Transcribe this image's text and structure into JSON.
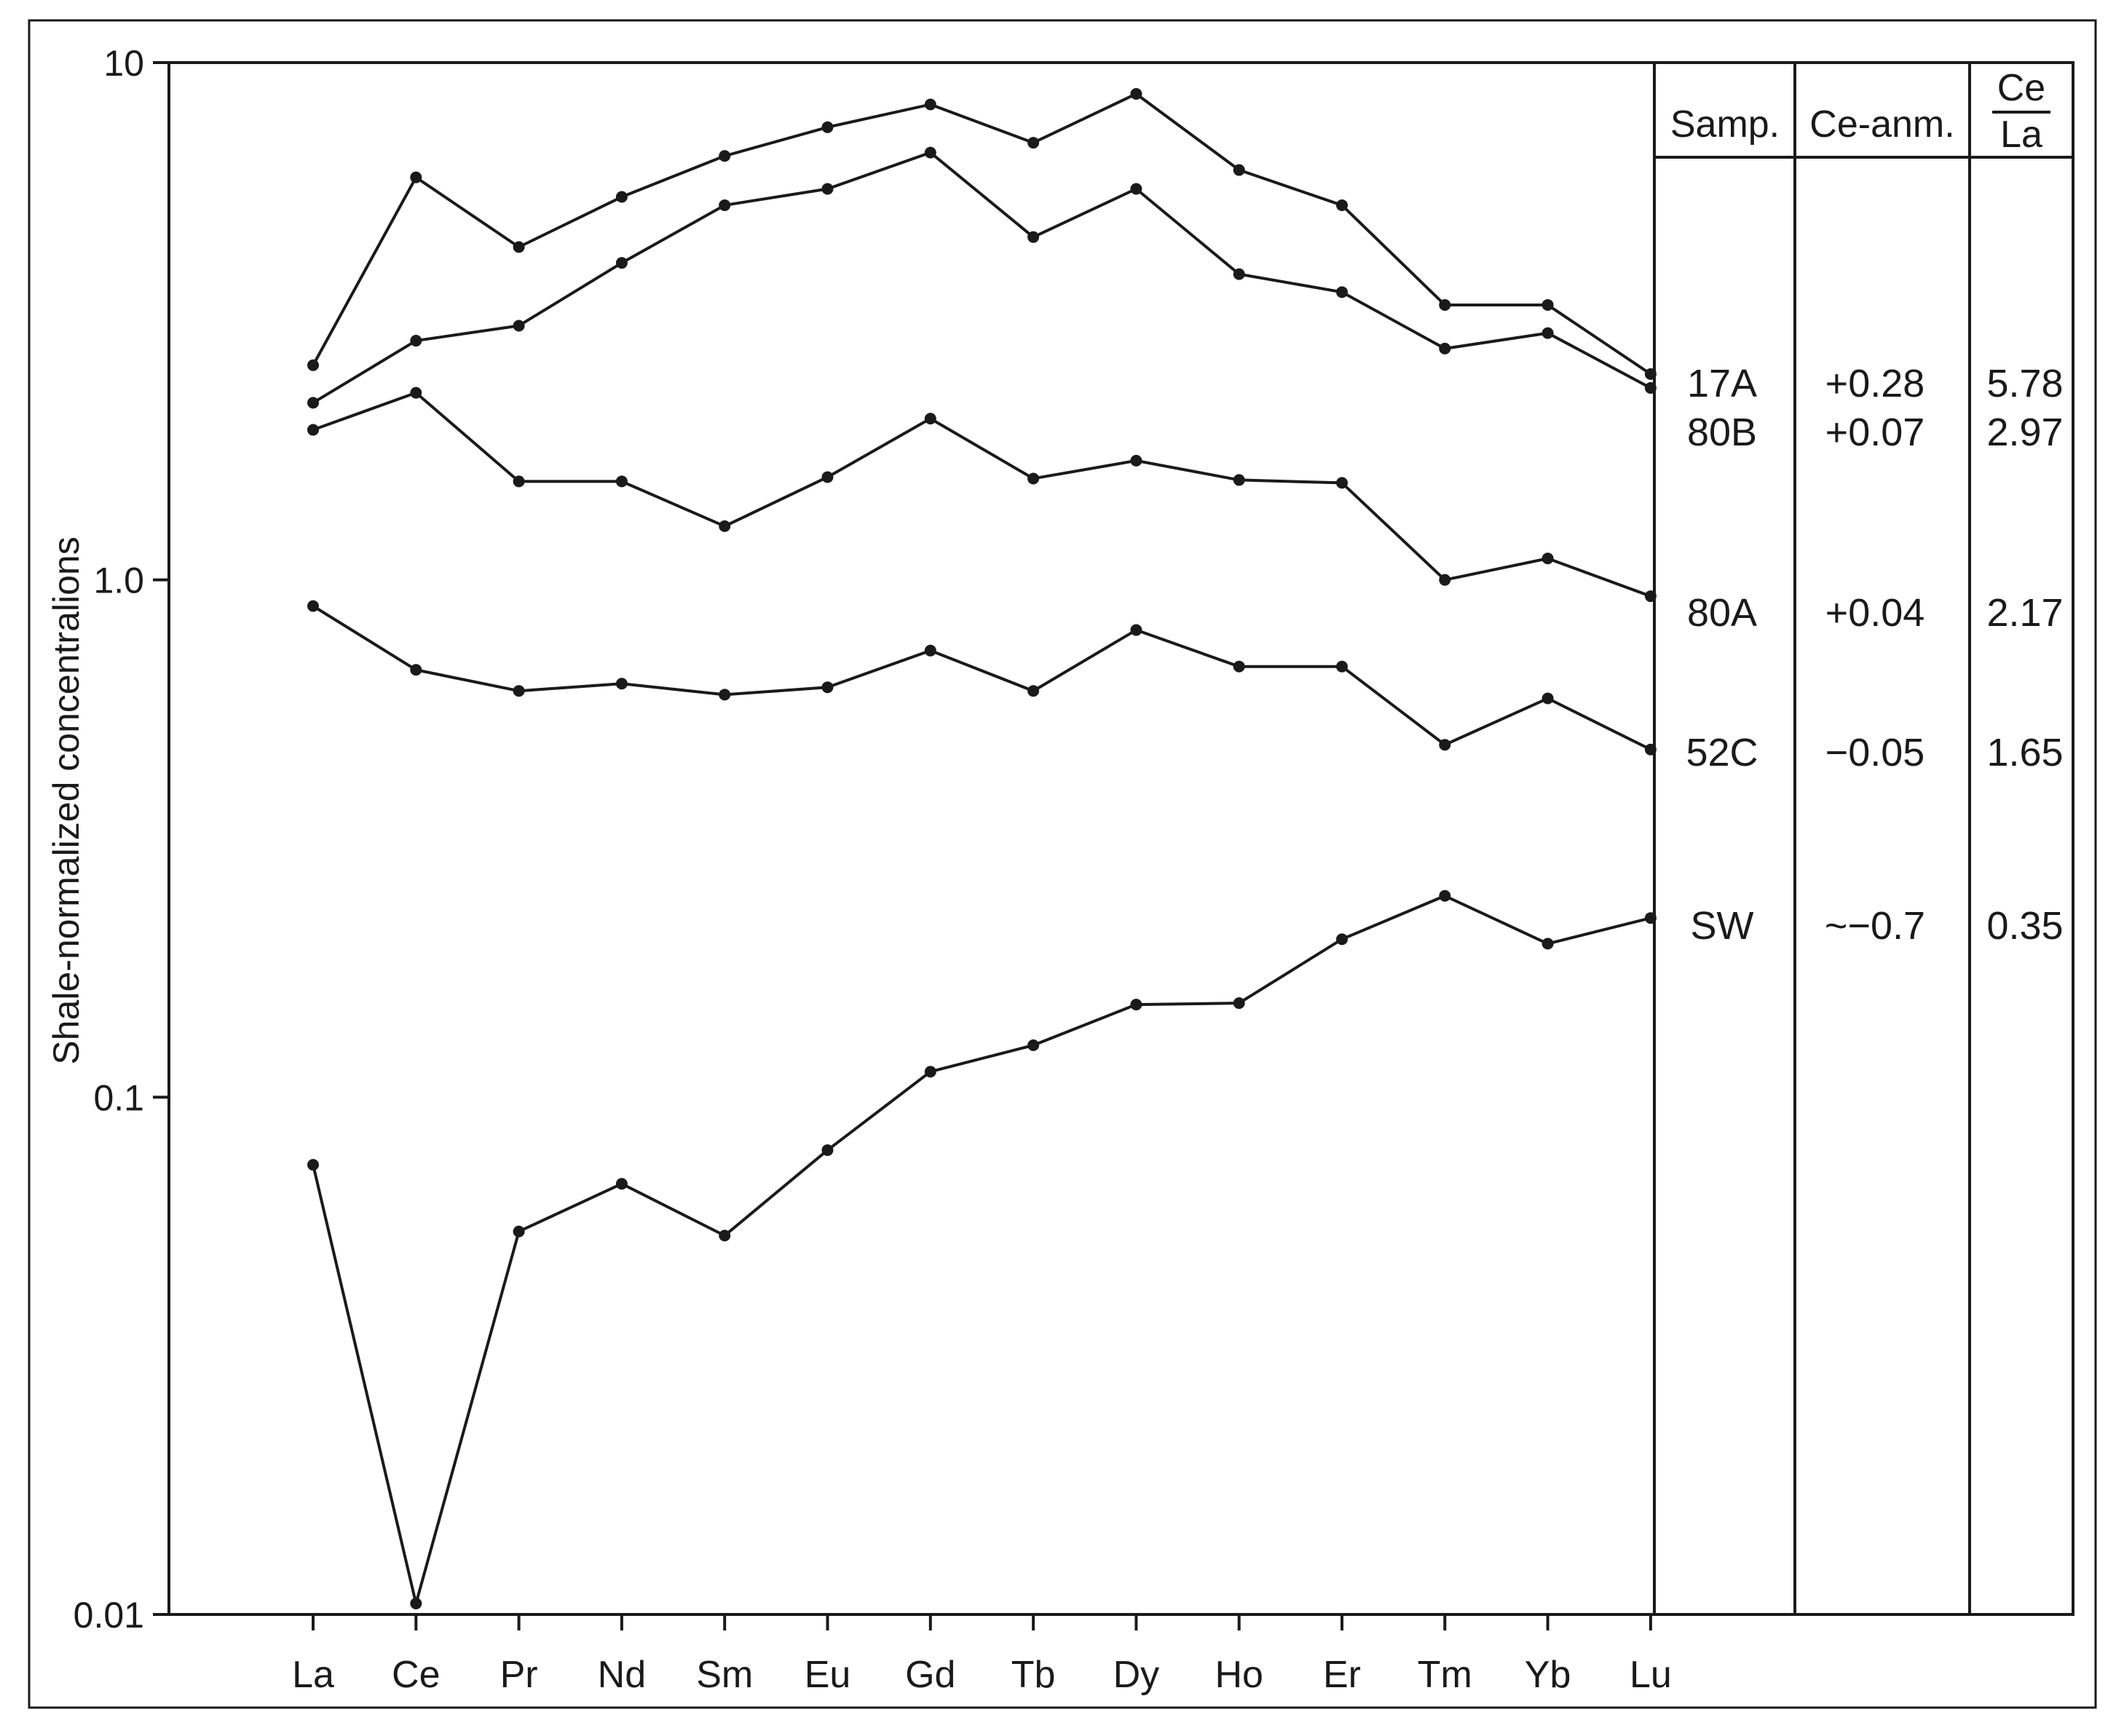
{
  "chart_data": {
    "type": "line",
    "ylabel": "Shale-normalized concentralions",
    "xlabel": "",
    "yscale": "log",
    "ylim": [
      0.01,
      10
    ],
    "y_ticks": [
      "10",
      "1.0",
      "0.1",
      "0.01"
    ],
    "y_tick_values": [
      10,
      1,
      0.1,
      0.01
    ],
    "categories": [
      "La",
      "Ce",
      "Pr",
      "Nd",
      "Sm",
      "Eu",
      "Gd",
      "Tb",
      "Dy",
      "Ho",
      "Er",
      "Tm",
      "Yb",
      "Lu"
    ],
    "grid": false,
    "series": [
      {
        "values": [
          2.6,
          6.0,
          4.4,
          5.5,
          6.6,
          7.5,
          8.3,
          7.0,
          8.7,
          6.2,
          5.3,
          3.4,
          3.4,
          2.5
        ]
      },
      {
        "values": [
          2.2,
          2.9,
          3.1,
          4.1,
          5.3,
          5.7,
          6.7,
          4.6,
          5.7,
          3.9,
          3.6,
          2.8,
          3.0,
          2.35
        ]
      },
      {
        "values": [
          1.95,
          2.3,
          1.55,
          1.55,
          1.27,
          1.58,
          2.05,
          1.57,
          1.7,
          1.56,
          1.54,
          1.0,
          1.1,
          0.93
        ]
      },
      {
        "values": [
          0.89,
          0.67,
          0.61,
          0.63,
          0.6,
          0.62,
          0.73,
          0.61,
          0.8,
          0.68,
          0.68,
          0.48,
          0.59,
          0.47
        ]
      },
      {
        "values": [
          0.074,
          0.0105,
          0.055,
          0.068,
          0.054,
          0.079,
          0.112,
          0.126,
          0.151,
          0.152,
          0.202,
          0.245,
          0.198,
          0.222
        ]
      }
    ]
  },
  "table": {
    "header": {
      "sample": "Samp.",
      "ce_anomaly": "Ce-anm.",
      "ratio_numerator": "Ce",
      "ratio_denominator": "La"
    },
    "rows": [
      {
        "sample": "17A",
        "ce_anomaly": "+0.28",
        "ratio": "5.78"
      },
      {
        "sample": "80B",
        "ce_anomaly": "+0.07",
        "ratio": "2.97"
      },
      {
        "sample": "80A",
        "ce_anomaly": "+0.04",
        "ratio": "2.17"
      },
      {
        "sample": "52C",
        "ce_anomaly": "−0.05",
        "ratio": "1.65"
      },
      {
        "sample": "SW",
        "ce_anomaly": "~−0.7",
        "ratio": "0.35"
      }
    ]
  },
  "colors": {
    "line": "#1a1a1a",
    "background": "#ffffff",
    "frame": "#1a1a1a"
  }
}
